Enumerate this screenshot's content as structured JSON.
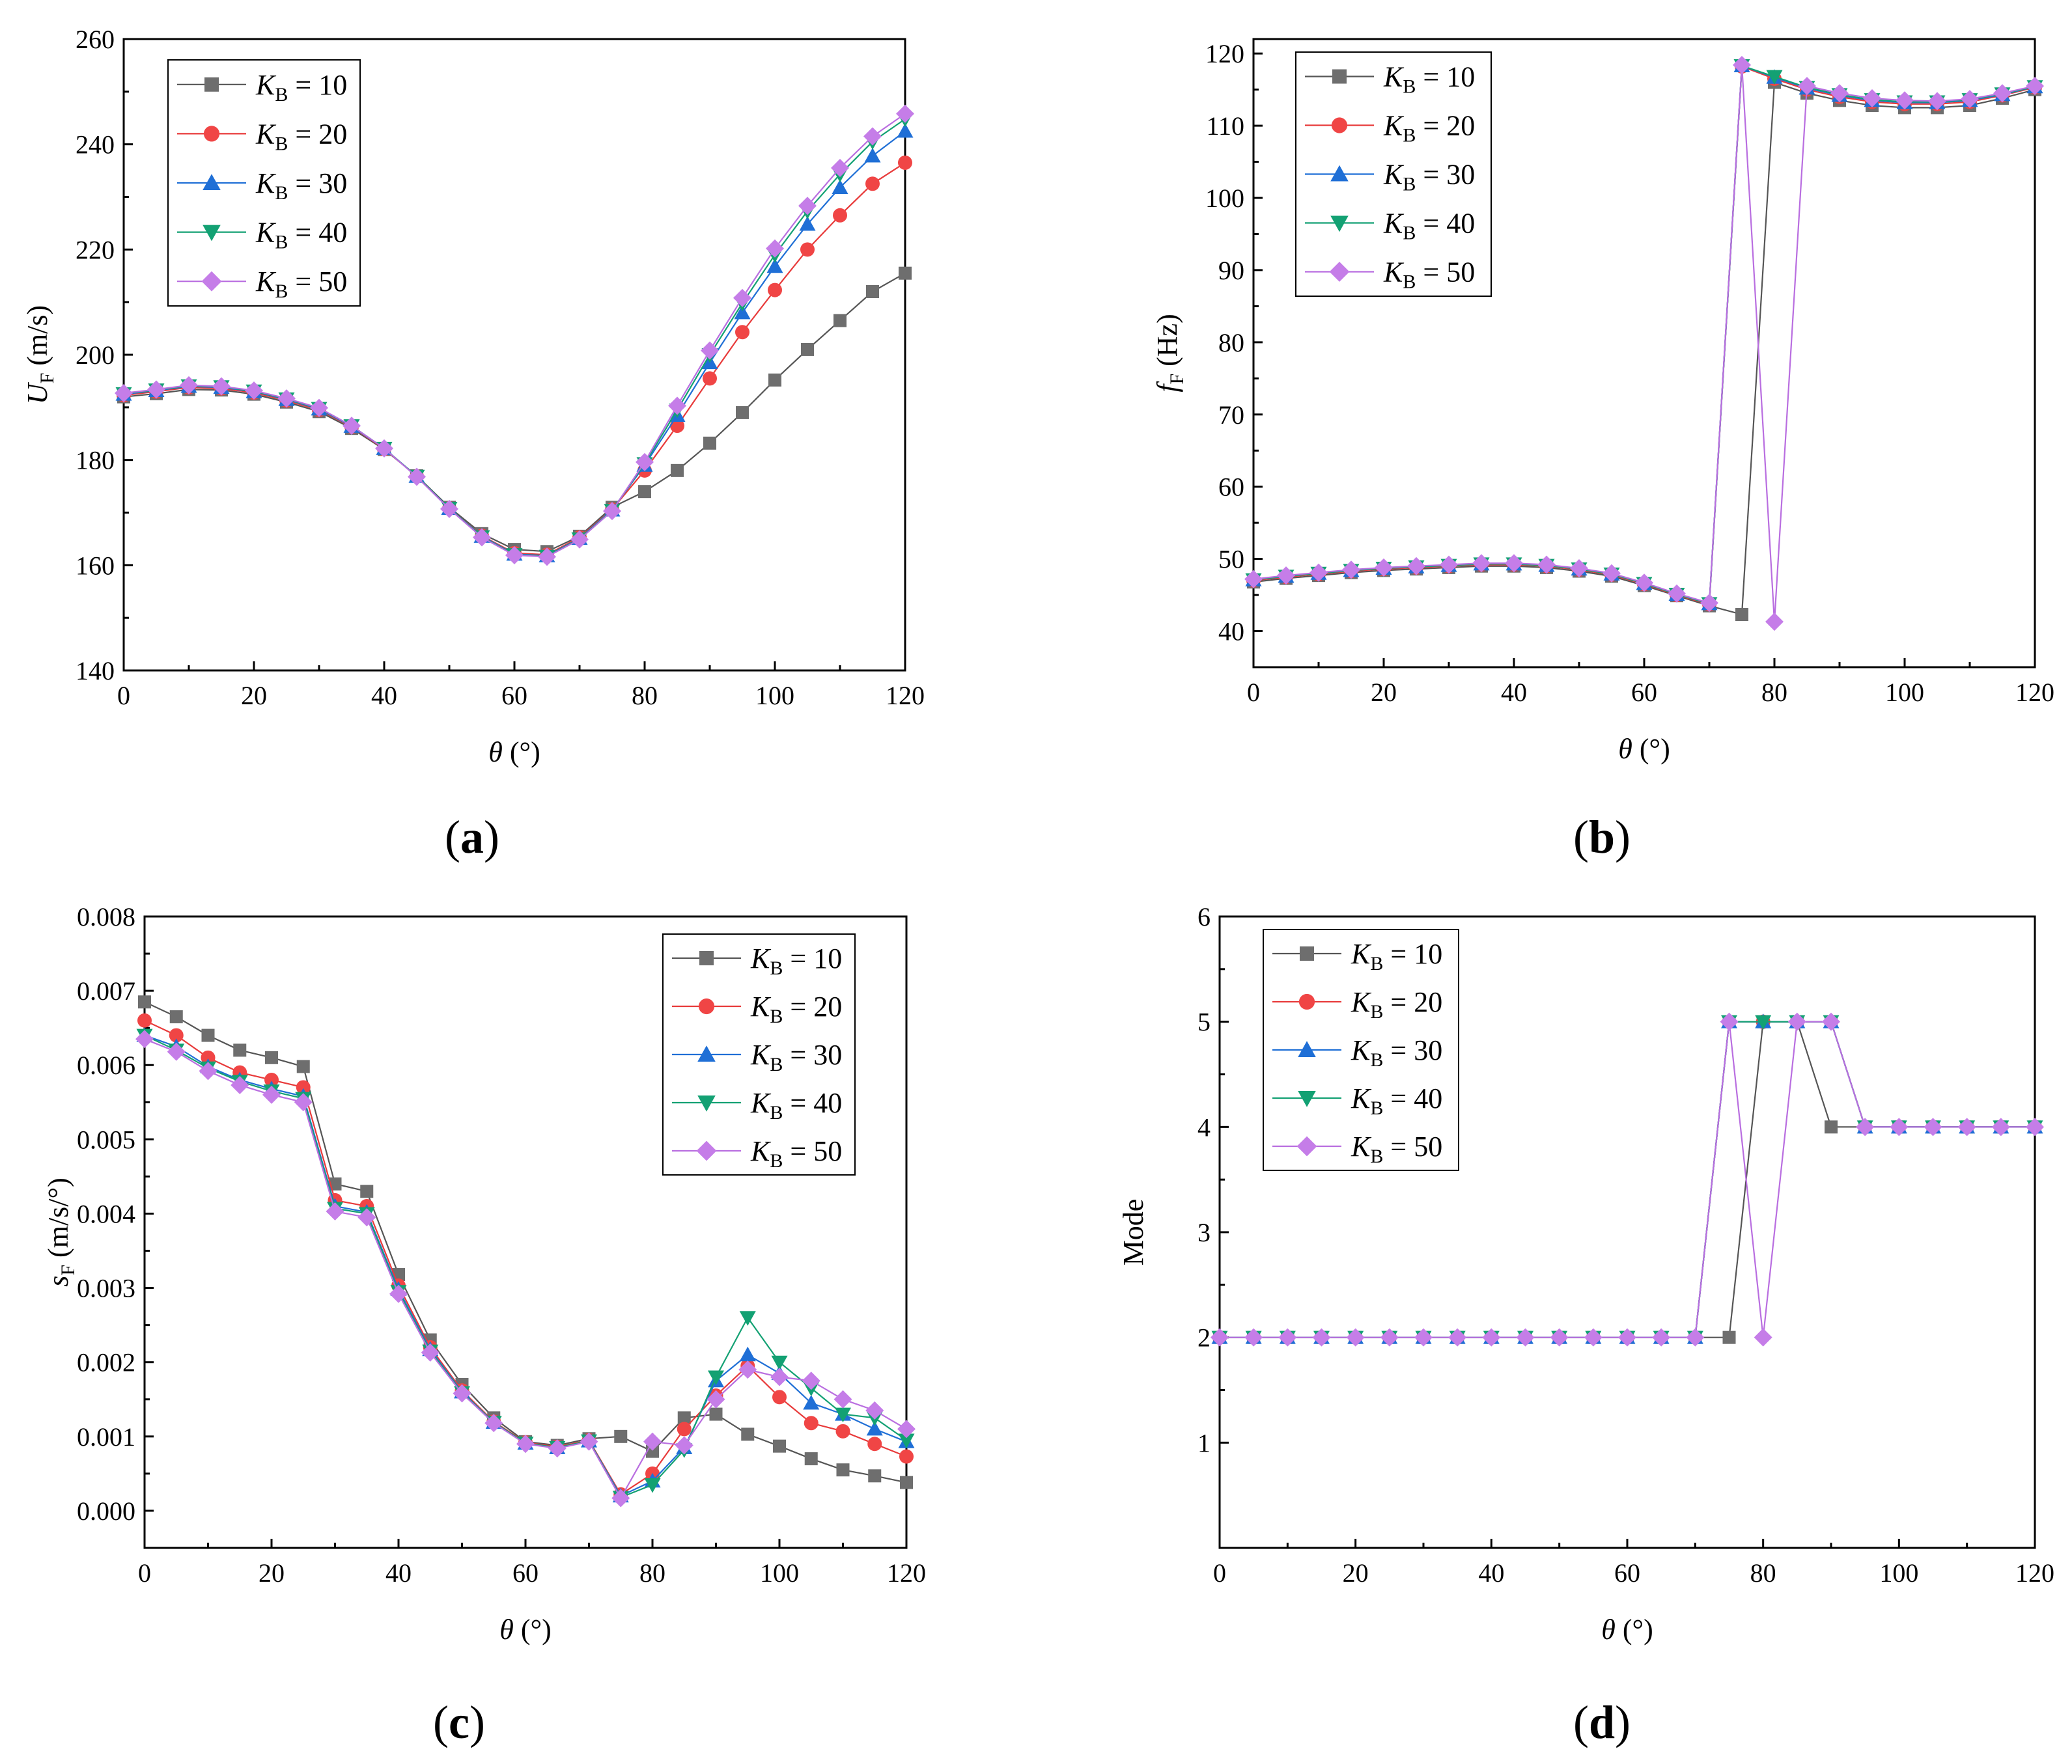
{
  "series_styles": [
    {
      "key": "K10",
      "color": "#6e6e6e",
      "line": "#555555",
      "marker": "square"
    },
    {
      "key": "K20",
      "color": "#f04545",
      "line": "#e83a3a",
      "marker": "circle"
    },
    {
      "key": "K30",
      "color": "#1f6fd6",
      "line": "#1f6fd6",
      "marker": "triangle-up"
    },
    {
      "key": "K40",
      "color": "#13a173",
      "line": "#13a173",
      "marker": "triangle-down"
    },
    {
      "key": "K50",
      "color": "#c57de8",
      "line": "#b96ee0",
      "marker": "diamond"
    }
  ],
  "chart_data": [
    {
      "id": "a",
      "type": "line",
      "panel_label": "(a)",
      "xlabel": "θ (°)",
      "ylabel": "U_F (m/s)",
      "ylabel_main": "U",
      "ylabel_sub": "F",
      "ylabel_unit": " (m/s)",
      "xlim": [
        0,
        120
      ],
      "ylim": [
        140,
        260
      ],
      "xticks": [
        0,
        20,
        40,
        60,
        80,
        100,
        120
      ],
      "yticks": [
        140,
        160,
        180,
        200,
        220,
        240,
        260
      ],
      "ytick_labels": [
        "140",
        "160",
        "180",
        "200",
        "220",
        "240",
        "260"
      ],
      "legend_position": "top-left",
      "x": [
        0,
        5,
        10,
        15,
        20,
        25,
        30,
        35,
        40,
        45,
        50,
        55,
        60,
        65,
        70,
        75,
        80,
        85,
        90,
        95,
        100,
        105,
        110,
        115,
        120
      ],
      "series": [
        {
          "name": "K_B = 10",
          "values": [
            192.0,
            192.6,
            193.4,
            193.3,
            192.5,
            191.0,
            189.2,
            186.0,
            182.0,
            177.0,
            171.0,
            166.0,
            163.0,
            162.6,
            165.5,
            171.0,
            174.0,
            178.0,
            183.2,
            189.0,
            195.2,
            201.0,
            206.5,
            212.0,
            215.5
          ]
        },
        {
          "name": "K_B = 20",
          "values": [
            192.3,
            193.0,
            193.8,
            193.6,
            192.8,
            191.3,
            189.5,
            186.3,
            182.1,
            176.9,
            170.8,
            165.6,
            162.3,
            162.0,
            165.3,
            170.6,
            178.0,
            186.5,
            195.5,
            204.3,
            212.3,
            220.0,
            226.5,
            232.5,
            236.5
          ]
        },
        {
          "name": "K_B = 30",
          "values": [
            192.5,
            193.2,
            194.0,
            193.8,
            193.0,
            191.5,
            189.7,
            186.4,
            182.2,
            176.9,
            170.8,
            165.5,
            162.1,
            161.8,
            165.1,
            170.5,
            179.0,
            188.5,
            198.5,
            208.0,
            216.8,
            224.8,
            231.8,
            237.8,
            242.5
          ]
        },
        {
          "name": "K_B = 40",
          "values": [
            192.6,
            193.3,
            194.1,
            193.9,
            193.1,
            191.6,
            189.8,
            186.5,
            182.2,
            176.9,
            170.8,
            165.4,
            162.0,
            161.7,
            165.0,
            170.4,
            179.3,
            189.5,
            200.0,
            209.8,
            219.0,
            227.3,
            234.3,
            240.5,
            244.8
          ]
        },
        {
          "name": "K_B = 50",
          "values": [
            192.7,
            193.4,
            194.2,
            194.0,
            193.2,
            191.7,
            189.9,
            186.5,
            182.2,
            176.8,
            170.7,
            165.3,
            161.9,
            161.6,
            164.9,
            170.3,
            179.6,
            190.3,
            200.8,
            210.8,
            220.2,
            228.3,
            235.5,
            241.5,
            245.8
          ]
        }
      ]
    },
    {
      "id": "b",
      "type": "line",
      "panel_label": "(b)",
      "xlabel": "θ (°)",
      "ylabel": "f_F (Hz)",
      "ylabel_main": "f",
      "ylabel_sub": "F",
      "ylabel_unit": " (Hz)",
      "xlim": [
        0,
        120
      ],
      "ylim": [
        35,
        122
      ],
      "xticks": [
        0,
        20,
        40,
        60,
        80,
        100,
        120
      ],
      "yticks": [
        40,
        50,
        60,
        70,
        80,
        90,
        100,
        110,
        120
      ],
      "ytick_labels": [
        "40",
        "50",
        "60",
        "70",
        "80",
        "90",
        "100",
        "110",
        "120"
      ],
      "legend_position": "top-left",
      "x": [
        0,
        5,
        10,
        15,
        20,
        25,
        30,
        35,
        40,
        45,
        50,
        55,
        60,
        65,
        70,
        75,
        80,
        85,
        90,
        95,
        100,
        105,
        110,
        115,
        120
      ],
      "series": [
        {
          "name": "K_B = 10",
          "values": [
            46.8,
            47.3,
            47.7,
            48.1,
            48.4,
            48.6,
            48.8,
            49.0,
            49.0,
            48.8,
            48.3,
            47.6,
            46.3,
            44.9,
            43.5,
            42.3,
            116.0,
            114.5,
            113.5,
            112.8,
            112.5,
            112.5,
            112.8,
            113.8,
            115.0
          ]
        },
        {
          "name": "K_B = 20",
          "values": [
            47.0,
            47.5,
            47.9,
            48.3,
            48.6,
            48.8,
            49.0,
            49.2,
            49.2,
            49.0,
            48.5,
            47.8,
            46.5,
            45.0,
            43.7,
            118.2,
            116.5,
            115.0,
            114.0,
            113.3,
            113.0,
            113.0,
            113.3,
            114.2,
            115.3
          ]
        },
        {
          "name": "K_B = 30",
          "values": [
            47.1,
            47.6,
            48.0,
            48.4,
            48.7,
            48.9,
            49.1,
            49.3,
            49.3,
            49.1,
            48.6,
            47.9,
            46.6,
            45.1,
            43.8,
            118.3,
            116.7,
            115.2,
            114.2,
            113.5,
            113.2,
            113.2,
            113.5,
            114.3,
            115.4
          ]
        },
        {
          "name": "K_B = 40",
          "values": [
            47.1,
            47.6,
            48.0,
            48.4,
            48.7,
            48.9,
            49.1,
            49.3,
            49.3,
            49.1,
            48.6,
            47.9,
            46.6,
            45.1,
            43.8,
            118.3,
            116.8,
            115.3,
            114.3,
            113.6,
            113.3,
            113.3,
            113.6,
            114.4,
            115.4
          ]
        },
        {
          "name": "K_B = 50",
          "values": [
            47.2,
            47.7,
            48.1,
            48.5,
            48.8,
            49.0,
            49.2,
            49.4,
            49.4,
            49.2,
            48.7,
            48.0,
            46.7,
            45.2,
            43.9,
            118.4,
            41.3,
            115.5,
            114.5,
            113.8,
            113.5,
            113.4,
            113.7,
            114.5,
            115.5
          ]
        }
      ]
    },
    {
      "id": "c",
      "type": "line",
      "panel_label": "(c)",
      "xlabel": "θ (°)",
      "ylabel": "s_F (m/s/°)",
      "ylabel_main": "s",
      "ylabel_sub": "F",
      "ylabel_unit": " (m/s/°)",
      "xlim": [
        0,
        120
      ],
      "ylim": [
        -0.0005,
        0.008
      ],
      "xticks": [
        0,
        20,
        40,
        60,
        80,
        100,
        120
      ],
      "yticks": [
        0,
        0.001,
        0.002,
        0.003,
        0.004,
        0.005,
        0.006,
        0.007,
        0.008
      ],
      "ytick_labels": [
        "0.000",
        "0.001",
        "0.002",
        "0.003",
        "0.004",
        "0.005",
        "0.006",
        "0.007",
        "0.008"
      ],
      "legend_position": "top-right",
      "x": [
        0,
        5,
        10,
        15,
        20,
        25,
        30,
        35,
        40,
        45,
        50,
        55,
        60,
        65,
        70,
        75,
        80,
        85,
        90,
        95,
        100,
        105,
        110,
        115,
        120
      ],
      "series": [
        {
          "name": "K_B = 10",
          "values": [
            0.00685,
            0.00665,
            0.0064,
            0.0062,
            0.0061,
            0.00598,
            0.0044,
            0.0043,
            0.00318,
            0.0023,
            0.0017,
            0.00125,
            0.00093,
            0.00088,
            0.00097,
            0.001,
            0.0008,
            0.00125,
            0.0013,
            0.00103,
            0.00087,
            0.0007,
            0.00055,
            0.00047,
            0.00038
          ]
        },
        {
          "name": "K_B = 20",
          "values": [
            0.0066,
            0.0064,
            0.0061,
            0.0059,
            0.0058,
            0.0057,
            0.00418,
            0.0041,
            0.00303,
            0.0022,
            0.00162,
            0.0012,
            0.00092,
            0.00086,
            0.00095,
            0.00022,
            0.0005,
            0.0011,
            0.00155,
            0.00195,
            0.00153,
            0.00118,
            0.00107,
            0.0009,
            0.00073
          ]
        },
        {
          "name": "K_B = 30",
          "values": [
            0.0064,
            0.00625,
            0.00598,
            0.0058,
            0.00568,
            0.00558,
            0.0041,
            0.00402,
            0.00298,
            0.00217,
            0.0016,
            0.00119,
            0.00091,
            0.00085,
            0.00094,
            0.0002,
            0.0004,
            0.00085,
            0.00175,
            0.0021,
            0.00185,
            0.00145,
            0.0013,
            0.0011,
            0.00093
          ]
        },
        {
          "name": "K_B = 40",
          "values": [
            0.0064,
            0.0062,
            0.00596,
            0.00578,
            0.00565,
            0.00555,
            0.00407,
            0.004,
            0.00295,
            0.00215,
            0.00159,
            0.00119,
            0.00091,
            0.00085,
            0.00094,
            0.00018,
            0.00035,
            0.00082,
            0.0018,
            0.0026,
            0.002,
            0.00165,
            0.0013,
            0.00125,
            0.00095
          ]
        },
        {
          "name": "K_B = 50",
          "values": [
            0.00635,
            0.00618,
            0.00592,
            0.00573,
            0.0056,
            0.0055,
            0.00403,
            0.00395,
            0.00292,
            0.00213,
            0.00158,
            0.00118,
            0.0009,
            0.00084,
            0.00093,
            0.00017,
            0.00093,
            0.00088,
            0.0015,
            0.0019,
            0.0018,
            0.00175,
            0.0015,
            0.00135,
            0.0011
          ]
        }
      ]
    },
    {
      "id": "d",
      "type": "line",
      "panel_label": "(d)",
      "xlabel": "θ (°)",
      "ylabel": "Mode",
      "ylabel_main": "Mode",
      "ylabel_sub": "",
      "ylabel_unit": "",
      "xlim": [
        0,
        120
      ],
      "ylim": [
        0,
        6
      ],
      "xticks": [
        0,
        20,
        40,
        60,
        80,
        100,
        120
      ],
      "yticks": [
        1,
        2,
        3,
        4,
        5,
        6
      ],
      "ytick_labels": [
        "1",
        "2",
        "3",
        "4",
        "5",
        "6"
      ],
      "legend_position": "top-left",
      "x": [
        0,
        5,
        10,
        15,
        20,
        25,
        30,
        35,
        40,
        45,
        50,
        55,
        60,
        65,
        70,
        75,
        80,
        85,
        90,
        95,
        100,
        105,
        110,
        115,
        120
      ],
      "series": [
        {
          "name": "K_B = 10",
          "values": [
            2,
            2,
            2,
            2,
            2,
            2,
            2,
            2,
            2,
            2,
            2,
            2,
            2,
            2,
            2,
            2,
            5,
            5,
            4,
            4,
            4,
            4,
            4,
            4,
            4
          ]
        },
        {
          "name": "K_B = 20",
          "values": [
            2,
            2,
            2,
            2,
            2,
            2,
            2,
            2,
            2,
            2,
            2,
            2,
            2,
            2,
            2,
            5,
            5,
            5,
            5,
            4,
            4,
            4,
            4,
            4,
            4
          ]
        },
        {
          "name": "K_B = 30",
          "values": [
            2,
            2,
            2,
            2,
            2,
            2,
            2,
            2,
            2,
            2,
            2,
            2,
            2,
            2,
            2,
            5,
            5,
            5,
            5,
            4,
            4,
            4,
            4,
            4,
            4
          ]
        },
        {
          "name": "K_B = 40",
          "values": [
            2,
            2,
            2,
            2,
            2,
            2,
            2,
            2,
            2,
            2,
            2,
            2,
            2,
            2,
            2,
            5,
            5,
            5,
            5,
            4,
            4,
            4,
            4,
            4,
            4
          ]
        },
        {
          "name": "K_B = 50",
          "values": [
            2,
            2,
            2,
            2,
            2,
            2,
            2,
            2,
            2,
            2,
            2,
            2,
            2,
            2,
            2,
            5,
            2,
            5,
            5,
            4,
            4,
            4,
            4,
            4,
            4
          ]
        }
      ]
    }
  ],
  "legend_entries": [
    {
      "main": "K",
      "sub": "B",
      "rest": " = 10"
    },
    {
      "main": "K",
      "sub": "B",
      "rest": " = 20"
    },
    {
      "main": "K",
      "sub": "B",
      "rest": " = 30"
    },
    {
      "main": "K",
      "sub": "B",
      "rest": " = 40"
    },
    {
      "main": "K",
      "sub": "B",
      "rest": " = 50"
    }
  ],
  "xlabel_main": "θ",
  "xlabel_unit": " (°)",
  "xtick_labels": [
    "0",
    "20",
    "40",
    "60",
    "80",
    "100",
    "120"
  ]
}
